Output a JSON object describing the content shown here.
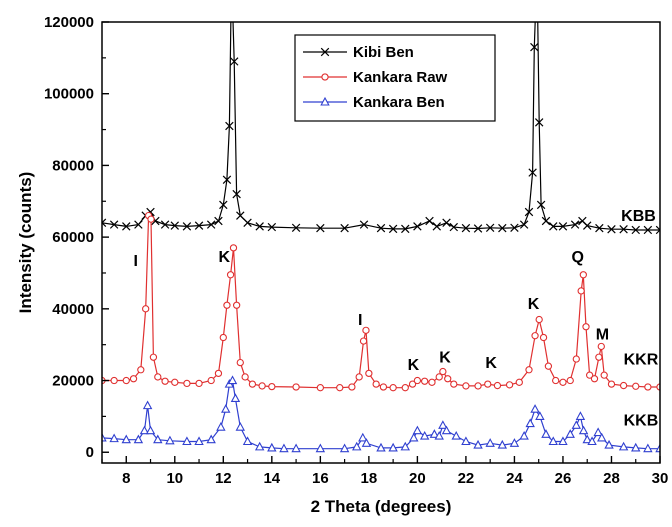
{
  "chart_data": {
    "type": "line",
    "title": "",
    "xlabel": "2 Theta (degrees)",
    "ylabel": "Intensity (counts)",
    "xlim": [
      7,
      30
    ],
    "ylim": [
      -3000,
      120000
    ],
    "x_ticks": [
      "8",
      "10",
      "12",
      "14",
      "16",
      "18",
      "20",
      "22",
      "24",
      "26",
      "28",
      "30"
    ],
    "y_ticks": [
      "0",
      "20000",
      "40000",
      "60000",
      "80000",
      "100000",
      "120000"
    ],
    "grid": false,
    "legend_position": "top-center",
    "series": [
      {
        "name": "Kibi Ben",
        "color": "#000000",
        "marker": "x",
        "points": [
          [
            7.0,
            64000
          ],
          [
            7.5,
            63500
          ],
          [
            8.0,
            63000
          ],
          [
            8.5,
            63500
          ],
          [
            8.8,
            66000
          ],
          [
            9.0,
            67000
          ],
          [
            9.2,
            64500
          ],
          [
            9.6,
            63500
          ],
          [
            10.0,
            63200
          ],
          [
            10.5,
            63000
          ],
          [
            11.0,
            63200
          ],
          [
            11.5,
            63500
          ],
          [
            11.8,
            64500
          ],
          [
            12.0,
            69000
          ],
          [
            12.15,
            76000
          ],
          [
            12.25,
            91000
          ],
          [
            12.32,
            125000
          ],
          [
            12.38,
            125000
          ],
          [
            12.45,
            109000
          ],
          [
            12.55,
            72000
          ],
          [
            12.7,
            66000
          ],
          [
            13.0,
            64000
          ],
          [
            13.5,
            63000
          ],
          [
            14.0,
            62800
          ],
          [
            15.0,
            62600
          ],
          [
            16.0,
            62500
          ],
          [
            17.0,
            62500
          ],
          [
            17.8,
            63500
          ],
          [
            18.5,
            62500
          ],
          [
            19.0,
            62300
          ],
          [
            19.5,
            62300
          ],
          [
            20.0,
            63000
          ],
          [
            20.5,
            64500
          ],
          [
            20.8,
            63000
          ],
          [
            21.2,
            64000
          ],
          [
            21.5,
            62800
          ],
          [
            22.0,
            62500
          ],
          [
            22.5,
            62400
          ],
          [
            23.0,
            62600
          ],
          [
            23.5,
            62500
          ],
          [
            24.0,
            62600
          ],
          [
            24.4,
            63500
          ],
          [
            24.6,
            67000
          ],
          [
            24.75,
            78000
          ],
          [
            24.82,
            113000
          ],
          [
            24.88,
            125000
          ],
          [
            24.95,
            125000
          ],
          [
            25.02,
            92000
          ],
          [
            25.1,
            69000
          ],
          [
            25.3,
            64500
          ],
          [
            25.6,
            63000
          ],
          [
            26.0,
            63000
          ],
          [
            26.5,
            63500
          ],
          [
            26.8,
            64500
          ],
          [
            27.0,
            63200
          ],
          [
            27.5,
            62500
          ],
          [
            28.0,
            62200
          ],
          [
            28.5,
            62200
          ],
          [
            29.0,
            62000
          ],
          [
            29.5,
            62000
          ],
          [
            30.0,
            62000
          ]
        ]
      },
      {
        "name": "Kankara Raw",
        "color": "#e03030",
        "marker": "o",
        "points": [
          [
            7.0,
            20000
          ],
          [
            7.5,
            20000
          ],
          [
            8.0,
            20000
          ],
          [
            8.3,
            20500
          ],
          [
            8.6,
            23000
          ],
          [
            8.8,
            40000
          ],
          [
            8.92,
            66000
          ],
          [
            9.02,
            65000
          ],
          [
            9.12,
            26500
          ],
          [
            9.3,
            21000
          ],
          [
            9.6,
            19800
          ],
          [
            10.0,
            19500
          ],
          [
            10.5,
            19200
          ],
          [
            11.0,
            19200
          ],
          [
            11.5,
            20000
          ],
          [
            11.8,
            22000
          ],
          [
            12.0,
            32000
          ],
          [
            12.15,
            41000
          ],
          [
            12.3,
            49500
          ],
          [
            12.42,
            57000
          ],
          [
            12.55,
            41000
          ],
          [
            12.7,
            25000
          ],
          [
            12.9,
            21000
          ],
          [
            13.2,
            19000
          ],
          [
            13.6,
            18500
          ],
          [
            14.0,
            18300
          ],
          [
            15.0,
            18200
          ],
          [
            16.0,
            18000
          ],
          [
            16.8,
            18000
          ],
          [
            17.3,
            18200
          ],
          [
            17.6,
            21000
          ],
          [
            17.78,
            31000
          ],
          [
            17.88,
            34000
          ],
          [
            18.0,
            22000
          ],
          [
            18.3,
            19000
          ],
          [
            18.6,
            18200
          ],
          [
            19.0,
            18000
          ],
          [
            19.5,
            18000
          ],
          [
            19.8,
            19000
          ],
          [
            20.0,
            20000
          ],
          [
            20.3,
            19800
          ],
          [
            20.6,
            19500
          ],
          [
            20.9,
            21000
          ],
          [
            21.05,
            22500
          ],
          [
            21.25,
            20500
          ],
          [
            21.5,
            19000
          ],
          [
            22.0,
            18500
          ],
          [
            22.5,
            18500
          ],
          [
            22.9,
            19000
          ],
          [
            23.3,
            18600
          ],
          [
            23.8,
            18800
          ],
          [
            24.2,
            19500
          ],
          [
            24.6,
            23000
          ],
          [
            24.85,
            32500
          ],
          [
            25.02,
            37000
          ],
          [
            25.2,
            32000
          ],
          [
            25.4,
            24000
          ],
          [
            25.7,
            20000
          ],
          [
            26.0,
            19500
          ],
          [
            26.3,
            20000
          ],
          [
            26.55,
            26000
          ],
          [
            26.75,
            45000
          ],
          [
            26.84,
            49500
          ],
          [
            26.95,
            35000
          ],
          [
            27.1,
            21500
          ],
          [
            27.3,
            20500
          ],
          [
            27.48,
            26500
          ],
          [
            27.58,
            29500
          ],
          [
            27.7,
            21500
          ],
          [
            28.0,
            19000
          ],
          [
            28.5,
            18600
          ],
          [
            29.0,
            18400
          ],
          [
            29.5,
            18200
          ],
          [
            30.0,
            18200
          ]
        ]
      },
      {
        "name": "Kankara Ben",
        "color": "#3040d0",
        "marker": "^",
        "points": [
          [
            7.0,
            4000
          ],
          [
            7.5,
            3800
          ],
          [
            8.0,
            3500
          ],
          [
            8.5,
            3500
          ],
          [
            8.75,
            6000
          ],
          [
            8.88,
            13000
          ],
          [
            9.0,
            6000
          ],
          [
            9.3,
            3500
          ],
          [
            9.8,
            3200
          ],
          [
            10.5,
            3000
          ],
          [
            11.0,
            3000
          ],
          [
            11.5,
            3500
          ],
          [
            11.9,
            7000
          ],
          [
            12.1,
            12000
          ],
          [
            12.25,
            19000
          ],
          [
            12.38,
            20000
          ],
          [
            12.5,
            15000
          ],
          [
            12.7,
            7000
          ],
          [
            13.0,
            3000
          ],
          [
            13.5,
            1500
          ],
          [
            14.0,
            1200
          ],
          [
            14.5,
            1000
          ],
          [
            15.0,
            1000
          ],
          [
            16.0,
            1000
          ],
          [
            17.0,
            1000
          ],
          [
            17.5,
            1500
          ],
          [
            17.75,
            4000
          ],
          [
            17.9,
            2500
          ],
          [
            18.5,
            1200
          ],
          [
            19.0,
            1200
          ],
          [
            19.5,
            1500
          ],
          [
            19.85,
            4000
          ],
          [
            20.0,
            6000
          ],
          [
            20.3,
            4500
          ],
          [
            20.7,
            5000
          ],
          [
            20.9,
            4500
          ],
          [
            21.05,
            7500
          ],
          [
            21.2,
            6000
          ],
          [
            21.6,
            4500
          ],
          [
            22.0,
            3000
          ],
          [
            22.5,
            2000
          ],
          [
            23.0,
            2500
          ],
          [
            23.5,
            2000
          ],
          [
            24.0,
            2500
          ],
          [
            24.4,
            4500
          ],
          [
            24.65,
            8000
          ],
          [
            24.85,
            12000
          ],
          [
            25.05,
            10000
          ],
          [
            25.3,
            5000
          ],
          [
            25.6,
            3000
          ],
          [
            26.0,
            3000
          ],
          [
            26.3,
            5000
          ],
          [
            26.55,
            7500
          ],
          [
            26.72,
            10000
          ],
          [
            26.85,
            6000
          ],
          [
            27.0,
            3500
          ],
          [
            27.2,
            3000
          ],
          [
            27.45,
            5500
          ],
          [
            27.6,
            4000
          ],
          [
            27.9,
            2000
          ],
          [
            28.5,
            1500
          ],
          [
            29.0,
            1200
          ],
          [
            29.5,
            1000
          ],
          [
            30.0,
            1000
          ]
        ]
      }
    ],
    "annotations": [
      {
        "text": "KBB",
        "x": 28.4,
        "y": 64500
      },
      {
        "text": "KKR",
        "x": 28.5,
        "y": 24500
      },
      {
        "text": "KKB",
        "x": 28.5,
        "y": 7500
      },
      {
        "text": "I",
        "x": 8.3,
        "y": 52000
      },
      {
        "text": "K",
        "x": 11.8,
        "y": 53000
      },
      {
        "text": "I",
        "x": 17.55,
        "y": 35500
      },
      {
        "text": "K",
        "x": 19.6,
        "y": 23000
      },
      {
        "text": "K",
        "x": 20.9,
        "y": 25000
      },
      {
        "text": "K",
        "x": 22.8,
        "y": 23500
      },
      {
        "text": "K",
        "x": 24.55,
        "y": 40000
      },
      {
        "text": "Q",
        "x": 26.35,
        "y": 53000
      },
      {
        "text": "M",
        "x": 27.35,
        "y": 31500
      }
    ]
  }
}
